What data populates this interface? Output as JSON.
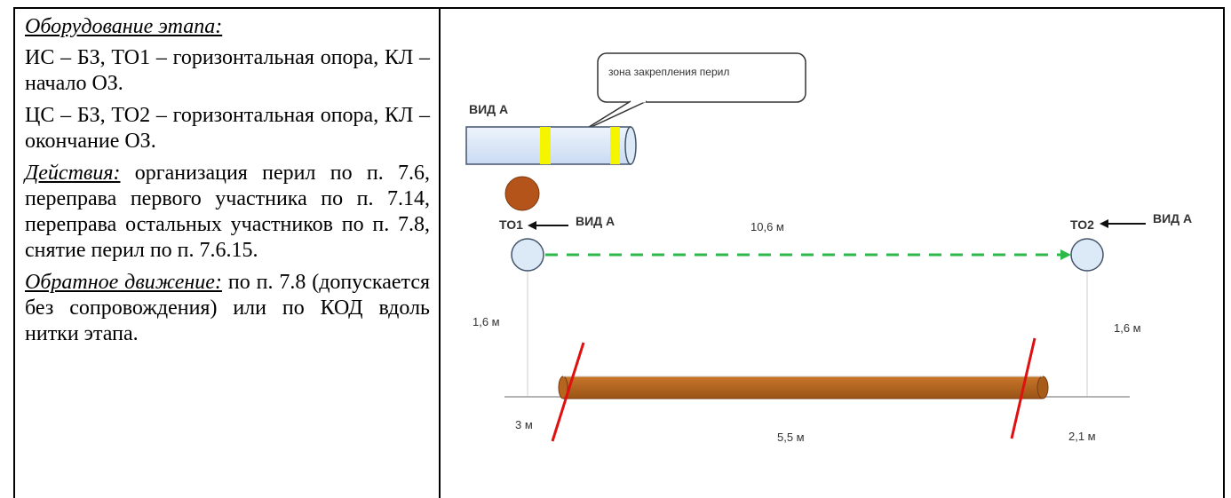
{
  "text_panel": {
    "equipment_title": "Оборудование этапа:",
    "equipment_line1": "ИС – БЗ, ТО1 – горизонтальная опора, КЛ – начало ОЗ.",
    "equipment_line2": "ЦС – БЗ, ТО2 – горизонтальная опора, КЛ – окончание ОЗ.",
    "actions_title": "Действия:",
    "actions_text": " организация перил по п. 7.6, переправа первого участника по п. 7.14, переправа остальных участников по п. 7.8, снятие перил по п. 7.6.15.",
    "return_title": "Обратное движение:",
    "return_text": " по п. 7.8 (допускается без сопровождения) или по КОД вдоль нитки этапа."
  },
  "diagram": {
    "callout_text": "зона закрепления перил",
    "view_a_title": "ВИД А",
    "to1_label": "ТО1",
    "to1_view_label": "ВИД А",
    "to2_label": "ТО2",
    "to2_view_label": "ВИД А",
    "span_distance": "10,6 м",
    "left_height": "1,6 м",
    "right_height": "1,6 м",
    "left_distance": "3 м",
    "log_length": "5,5 м",
    "right_distance": "2,1 м",
    "colors": {
      "log": "#b5651d",
      "post": "#dce9f7",
      "rope": "#2db84a",
      "strike": "#e01010",
      "marker": "#f5f500"
    }
  }
}
